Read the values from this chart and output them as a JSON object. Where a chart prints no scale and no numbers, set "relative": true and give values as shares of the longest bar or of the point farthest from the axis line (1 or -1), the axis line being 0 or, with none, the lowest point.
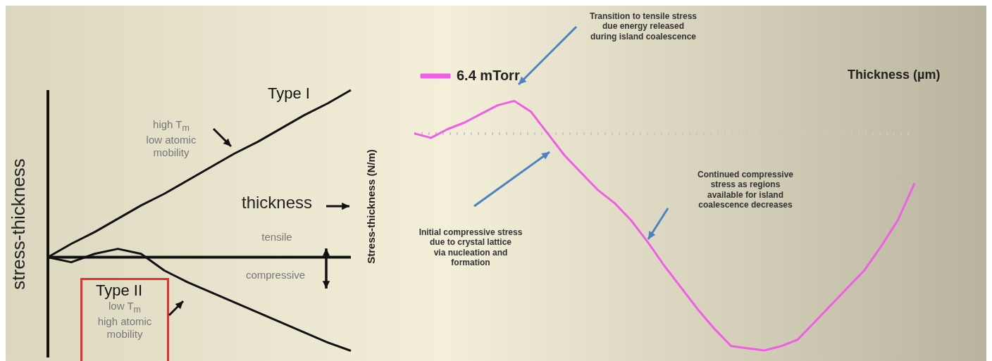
{
  "chart_data": [
    {
      "type": "line",
      "relative": true,
      "xlabel": "thickness",
      "ylabel": "stress-thickness",
      "legend": false,
      "categories": [
        null,
        null,
        null,
        null,
        null,
        null,
        null,
        null,
        null,
        null,
        null,
        null,
        null,
        null
      ],
      "series": [
        {
          "name": "Type I",
          "color": "#111111",
          "values": [
            0,
            0.08,
            0.15,
            0.23,
            0.31,
            0.38,
            0.46,
            0.54,
            0.62,
            0.69,
            0.77,
            0.85,
            0.92,
            1
          ]
        },
        {
          "name": "Type II",
          "color": "#111111",
          "values": [
            0,
            -0.03,
            0.02,
            0.05,
            0.02,
            -0.08,
            -0.15,
            -0.21,
            -0.27,
            -0.33,
            -0.39,
            -0.45,
            -0.51,
            -0.56
          ]
        }
      ],
      "annotations": [
        "high T$_{m}$\nlow atomic\nmobility",
        "tensile",
        "compressive",
        "low T$_{m}$\nhigh atomic\nmobility"
      ]
    },
    {
      "type": "line",
      "relative": true,
      "xlabel": "Thickness (µm)",
      "ylabel": "Stress-thickness (N/m)",
      "legend": "top left",
      "ref_lines": [
        {
          "axis": "y",
          "value": 0,
          "color": "#c8c8c8",
          "line_style": "dotted"
        }
      ],
      "categories": [
        null,
        null,
        null,
        null,
        null,
        null,
        null,
        null,
        null,
        null,
        null,
        null,
        null,
        null,
        null,
        null,
        null,
        null,
        null,
        null,
        null,
        null,
        null,
        null,
        null,
        null,
        null,
        null,
        null,
        null,
        null
      ],
      "series": [
        {
          "name": "6.4 mTorr",
          "color": "#f05ee6",
          "values": [
            0,
            -0.02,
            0.02,
            0.05,
            0.09,
            0.13,
            0.15,
            0.1,
            0,
            -0.1,
            -0.18,
            -0.26,
            -0.32,
            -0.4,
            -0.5,
            -0.61,
            -0.71,
            -0.81,
            -0.9,
            -0.98,
            -0.99,
            -1,
            -0.98,
            -0.95,
            -0.87,
            -0.79,
            -0.71,
            -0.63,
            -0.52,
            -0.4,
            -0.23
          ]
        }
      ],
      "annotations": [
        "Transition to tensile stress\ndue energy released\nduring island coalescence",
        "Initial compressive stress\ndue to crystal lattice\nvia nucleation and\nformation",
        "Continued compressive\nstress as regions\navailable for island\ncoalescence decreases"
      ]
    }
  ]
}
